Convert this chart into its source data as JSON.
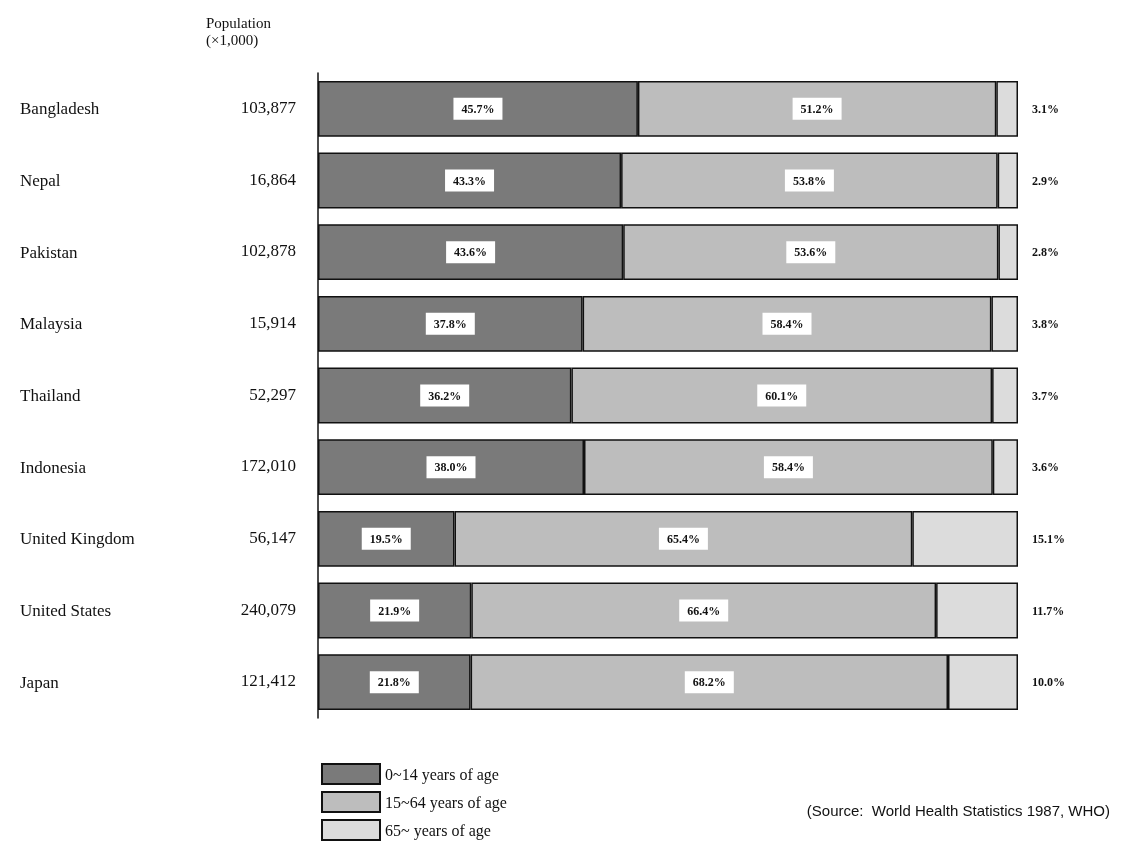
{
  "chart_data": {
    "type": "bar",
    "orientation": "horizontal",
    "stacked": true,
    "categories": [
      "Bangladesh",
      "Nepal",
      "Pakistan",
      "Malaysia",
      "Thailand",
      "Indonesia",
      "United Kingdom",
      "United States",
      "Japan"
    ],
    "xlim": [
      0,
      100
    ],
    "tick_labels": "y",
    "grid": false,
    "legend": "bottom",
    "series": [
      {
        "name": "0~14 years of age",
        "color": "#7a7a7a",
        "values": [
          45.7,
          43.3,
          43.6,
          37.8,
          36.2,
          38.0,
          19.5,
          21.9,
          21.8
        ],
        "value_labels": [
          "45.7%",
          "43.3%",
          "43.6%",
          "37.8%",
          "36.2%",
          "38.0%",
          "19.5%",
          "21.9%",
          "21.8%"
        ]
      },
      {
        "name": "15~64 years of age",
        "color": "#bdbdbd",
        "values": [
          51.2,
          53.8,
          53.6,
          58.4,
          60.1,
          58.4,
          65.4,
          66.4,
          68.2
        ],
        "value_labels": [
          "51.2%",
          "53.8%",
          "53.6%",
          "58.4%",
          "60.1%",
          "58.4%",
          "65.4%",
          "66.4%",
          "68.2%"
        ]
      },
      {
        "name": "65~ years of age",
        "color": "#dcdcdc",
        "values": [
          3.1,
          2.9,
          2.8,
          3.8,
          3.7,
          3.6,
          15.1,
          11.7,
          10.0
        ],
        "value_labels": [
          "3.1%",
          "2.9%",
          "2.8%",
          "3.8%",
          "3.7%",
          "3.6%",
          "15.1%",
          "11.7%",
          "10.0%"
        ]
      }
    ],
    "annotations": [
      "Population (×1,000)",
      "103,877",
      "16,864",
      "102,878",
      "15,914",
      "52,297",
      "172,010",
      "56,147",
      "240,079",
      "121,412",
      "(Source:  World Health Statistics 1987, WHO)"
    ]
  }
}
